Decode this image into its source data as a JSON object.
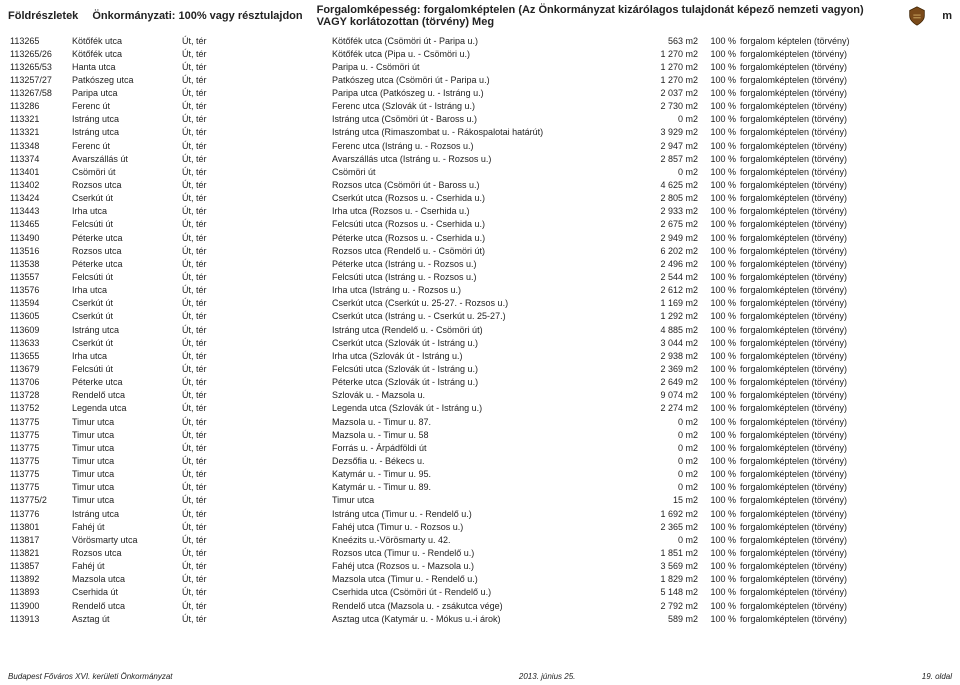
{
  "header": {
    "col1": "Földrészletek",
    "col2": "Önkormányzati: 100% vagy résztulajdon",
    "col3": "Forgalomképesség: forgalomképtelen (Az Önkormányzat kizárólagos tulajdonát képező nemzeti vagyon) VAGY korlátozottan (törvény)  Meg",
    "suffix": "m"
  },
  "columns": [
    "id",
    "name",
    "type",
    "desc",
    "area",
    "own",
    "stat"
  ],
  "rows": [
    [
      "113265",
      "Kötőfék utca",
      "Út, tér",
      "Kötőfék utca (Csömöri út - Paripa u.)",
      "563 m2",
      "100 %",
      "forgalom képtelen (törvény)"
    ],
    [
      "113265/26",
      "Kötőfék utca",
      "Út, tér",
      "Kötőfék utca (Pipa u. - Csömöri u.)",
      "1 270 m2",
      "100 %",
      "forgalomképtelen (törvény)"
    ],
    [
      "113265/53",
      "Hanta utca",
      "Út, tér",
      "Paripa u. - Csömöri út",
      "1 270 m2",
      "100 %",
      "forgalomképtelen (törvény)"
    ],
    [
      "113257/27",
      "Patkószeg utca",
      "Út, tér",
      "Patkószeg utca (Csömöri út - Paripa u.)",
      "1 270 m2",
      "100 %",
      "forgalomképtelen (törvény)"
    ],
    [
      "113267/58",
      "Paripa utca",
      "Út, tér",
      "Paripa utca (Patkószeg u. - Istráng u.)",
      "2 037 m2",
      "100 %",
      "forgalomképtelen (törvény)"
    ],
    [
      "113286",
      "Ferenc út",
      "Út, tér",
      "Ferenc utca (Szlovák út - Istráng u.)",
      "2 730 m2",
      "100 %",
      "forgalomképtelen (törvény)"
    ],
    [
      "113321",
      "Istráng utca",
      "Út, tér",
      "Istráng utca (Csömöri út - Baross u.)",
      "0 m2",
      "100 %",
      "forgalomképtelen (törvény)"
    ],
    [
      "113321",
      "Istráng utca",
      "Út, tér",
      "Istráng utca (Rimaszombat u. - Rákospalotai határút)",
      "3 929 m2",
      "100 %",
      "forgalomképtelen (törvény)"
    ],
    [
      "113348",
      "Ferenc út",
      "Út, tér",
      "Ferenc utca (Istráng u. - Rozsos u.)",
      "2 947 m2",
      "100 %",
      "forgalomképtelen (törvény)"
    ],
    [
      "113374",
      "Avarszállás út",
      "Út, tér",
      "Avarszállás utca (Istráng u. - Rozsos u.)",
      "2 857 m2",
      "100 %",
      "forgalomképtelen (törvény)"
    ],
    [
      "113401",
      "Csömöri út",
      "Út, tér",
      "Csömöri út",
      "0 m2",
      "100 %",
      "forgalomképtelen (törvény)"
    ],
    [
      "113402",
      "Rozsos utca",
      "Út, tér",
      "Rozsos utca (Csömöri út - Baross u.)",
      "4 625 m2",
      "100 %",
      "forgalomképtelen (törvény)"
    ],
    [
      "113424",
      "Cserkút út",
      "Út, tér",
      "Cserkút utca (Rozsos u. - Cserhida u.)",
      "2 805 m2",
      "100 %",
      "forgalomképtelen (törvény)"
    ],
    [
      "113443",
      "Irha utca",
      "Út, tér",
      "Irha utca (Rozsos u. - Cserhida u.)",
      "2 933 m2",
      "100 %",
      "forgalomképtelen (törvény)"
    ],
    [
      "113465",
      "Felcsúti út",
      "Út, tér",
      "Felcsúti utca (Rozsos u. - Cserhida u.)",
      "2 675 m2",
      "100 %",
      "forgalomképtelen (törvény)"
    ],
    [
      "113490",
      "Péterke utca",
      "Út, tér",
      "Péterke utca (Rozsos u. - Cserhida u.)",
      "2 949 m2",
      "100 %",
      "forgalomképtelen (törvény)"
    ],
    [
      "113516",
      "Rozsos utca",
      "Út, tér",
      "Rozsos utca (Rendelő u. - Csömöri út)",
      "6 202 m2",
      "100 %",
      "forgalomképtelen (törvény)"
    ],
    [
      "113538",
      "Péterke utca",
      "Út, tér",
      "Péterke utca (Istráng u. - Rozsos u.)",
      "2 496 m2",
      "100 %",
      "forgalomképtelen (törvény)"
    ],
    [
      "113557",
      "Felcsúti út",
      "Út, tér",
      "Felcsúti utca (Istráng u. - Rozsos u.)",
      "2 544 m2",
      "100 %",
      "forgalomképtelen (törvény)"
    ],
    [
      "113576",
      "Irha utca",
      "Út, tér",
      "Irha utca (Istráng u. - Rozsos u.)",
      "2 612 m2",
      "100 %",
      "forgalomképtelen (törvény)"
    ],
    [
      "113594",
      "Cserkút út",
      "Út, tér",
      "Cserkút utca (Cserkút u. 25-27. - Rozsos u.)",
      "1 169 m2",
      "100 %",
      "forgalomképtelen (törvény)"
    ],
    [
      "113605",
      "Cserkút út",
      "Út, tér",
      "Cserkút utca (Istráng u. - Cserkút u. 25-27.)",
      "1 292 m2",
      "100 %",
      "forgalomképtelen (törvény)"
    ],
    [
      "113609",
      "Istráng utca",
      "Út, tér",
      "Istráng utca (Rendelő u. - Csömöri út)",
      "4 885 m2",
      "100 %",
      "forgalomképtelen (törvény)"
    ],
    [
      "113633",
      "Cserkút út",
      "Út, tér",
      "Cserkút utca (Szlovák út - Istráng u.)",
      "3 044 m2",
      "100 %",
      "forgalomképtelen (törvény)"
    ],
    [
      "113655",
      "Irha utca",
      "Út, tér",
      "Irha utca (Szlovák út - Istráng u.)",
      "2 938 m2",
      "100 %",
      "forgalomképtelen (törvény)"
    ],
    [
      "113679",
      "Felcsúti út",
      "Út, tér",
      "Felcsúti utca (Szlovák út - Istráng u.)",
      "2 369 m2",
      "100 %",
      "forgalomképtelen (törvény)"
    ],
    [
      "113706",
      "Péterke utca",
      "Út, tér",
      "Péterke utca (Szlovák út - Istráng u.)",
      "2 649 m2",
      "100 %",
      "forgalomképtelen (törvény)"
    ],
    [
      "113728",
      "Rendelő utca",
      "Út, tér",
      "Szlovák u. - Mazsola u.",
      "9 074 m2",
      "100 %",
      "forgalomképtelen (törvény)"
    ],
    [
      "113752",
      "Legenda utca",
      "Út, tér",
      "Legenda utca (Szlovák út - Istráng u.)",
      "2 274 m2",
      "100 %",
      "forgalomképtelen (törvény)"
    ],
    [
      "113775",
      "Timur utca",
      "Út, tér",
      "Mazsola u. - Timur u. 87.",
      "0 m2",
      "100 %",
      "forgalomképtelen (törvény)"
    ],
    [
      "113775",
      "Timur utca",
      "Út, tér",
      "Mazsola u. - Timur u. 58",
      "0 m2",
      "100 %",
      "forgalomképtelen (törvény)"
    ],
    [
      "113775",
      "Timur utca",
      "Út, tér",
      "Forrás u. - Árpádföldi út",
      "0 m2",
      "100 %",
      "forgalomképtelen (törvény)"
    ],
    [
      "113775",
      "Timur utca",
      "Út, tér",
      "Dezsőfia u. - Békecs u.",
      "0 m2",
      "100 %",
      "forgalomképtelen (törvény)"
    ],
    [
      "113775",
      "Timur utca",
      "Út, tér",
      "Katymár u. - Timur u. 95.",
      "0 m2",
      "100 %",
      "forgalomképtelen (törvény)"
    ],
    [
      "113775",
      "Timur utca",
      "Út, tér",
      "Katymár u. - Timur u. 89.",
      "0 m2",
      "100 %",
      "forgalomképtelen (törvény)"
    ],
    [
      "113775/2",
      "Timur utca",
      "Út, tér",
      "Timur utca",
      "15 m2",
      "100 %",
      "forgalomképtelen (törvény)"
    ],
    [
      "113776",
      "Istráng utca",
      "Út, tér",
      "Istráng utca (Timur u. - Rendelő u.)",
      "1 692 m2",
      "100 %",
      "forgalomképtelen (törvény)"
    ],
    [
      "113801",
      "Fahéj út",
      "Út, tér",
      "Fahéj utca (Timur u. - Rozsos u.)",
      "2 365 m2",
      "100 %",
      "forgalomképtelen (törvény)"
    ],
    [
      "113817",
      "Vörösmarty utca",
      "Út, tér",
      "Kneézits u.-Vörösmarty u. 42.",
      "0 m2",
      "100 %",
      "forgalomképtelen (törvény)"
    ],
    [
      "113821",
      "Rozsos utca",
      "Út, tér",
      "Rozsos utca (Timur u. - Rendelő u.)",
      "1 851 m2",
      "100 %",
      "forgalomképtelen (törvény)"
    ],
    [
      "113857",
      "Fahéj út",
      "Út, tér",
      "Fahéj utca (Rozsos u. - Mazsola u.)",
      "3 569 m2",
      "100 %",
      "forgalomképtelen (törvény)"
    ],
    [
      "113892",
      "Mazsola utca",
      "Út, tér",
      "Mazsola utca (Timur u. - Rendelő u.)",
      "1 829 m2",
      "100 %",
      "forgalomképtelen (törvény)"
    ],
    [
      "113893",
      "Cserhida út",
      "Út, tér",
      "Cserhida utca (Csömöri út - Rendelő u.)",
      "5 148 m2",
      "100 %",
      "forgalomképtelen (törvény)"
    ],
    [
      "113900",
      "Rendelő utca",
      "Út, tér",
      "Rendelő utca (Mazsola u. - zsákutca vége)",
      "2 792 m2",
      "100 %",
      "forgalomképtelen (törvény)"
    ],
    [
      "113913",
      "Asztag út",
      "Út, tér",
      "Asztag utca (Katymár u. - Mókus u.-i árok)",
      "589 m2",
      "100 %",
      "forgalomképtelen (törvény)"
    ]
  ],
  "footer": {
    "left": "Budapest Főváros XVI. kerületi Önkormányzat",
    "mid": "2013. június 25.",
    "right": "19. oldal"
  }
}
